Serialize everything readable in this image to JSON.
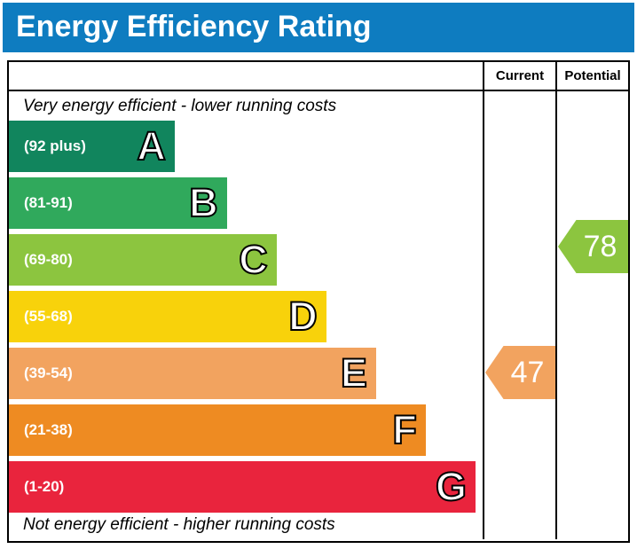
{
  "title": "Energy Efficiency Rating",
  "columns": {
    "current": "Current",
    "potential": "Potential"
  },
  "top_note": "Very energy efficient - lower running costs",
  "bottom_note": "Not energy efficient - higher running costs",
  "colors": {
    "title_bar_bg": "#0E7CC0",
    "table_border": "#000000",
    "title_text": "#FFFFFF"
  },
  "bands": [
    {
      "letter": "A",
      "range": "(92 plus)",
      "color": "#11855D",
      "width_pct": 35
    },
    {
      "letter": "B",
      "range": "(81-91)",
      "color": "#30A95C",
      "width_pct": 46
    },
    {
      "letter": "C",
      "range": "(69-80)",
      "color": "#8CC53F",
      "width_pct": 56.5
    },
    {
      "letter": "D",
      "range": "(55-68)",
      "color": "#F8D20B",
      "width_pct": 67
    },
    {
      "letter": "E",
      "range": "(39-54)",
      "color": "#F2A35F",
      "width_pct": 77.5
    },
    {
      "letter": "F",
      "range": "(21-38)",
      "color": "#EE8B22",
      "width_pct": 88
    },
    {
      "letter": "G",
      "range": "(1-20)",
      "color": "#E9243D",
      "width_pct": 98.5
    }
  ],
  "ratings": {
    "current": {
      "value": "47",
      "band": "E",
      "color": "#F2A35F"
    },
    "potential": {
      "value": "78",
      "band": "C",
      "color": "#8CC53F"
    }
  },
  "chart_data": {
    "type": "bar",
    "title": "Energy Efficiency Rating",
    "categories": [
      "A",
      "B",
      "C",
      "D",
      "E",
      "F",
      "G"
    ],
    "band_ranges": [
      "(92 plus)",
      "(81-91)",
      "(69-80)",
      "(55-68)",
      "(39-54)",
      "(21-38)",
      "(1-20)"
    ],
    "band_colors": [
      "#11855D",
      "#30A95C",
      "#8CC53F",
      "#F8D20B",
      "#F2A35F",
      "#EE8B22",
      "#E9243D"
    ],
    "bar_widths_pct": [
      35,
      46,
      56.5,
      67,
      77.5,
      88,
      98.5
    ],
    "columns": [
      "Current",
      "Potential"
    ],
    "current_rating": 47,
    "current_band": "E",
    "potential_rating": 78,
    "potential_band": "C",
    "top_annotation": "Very energy efficient - lower running costs",
    "bottom_annotation": "Not energy efficient - higher running costs"
  }
}
